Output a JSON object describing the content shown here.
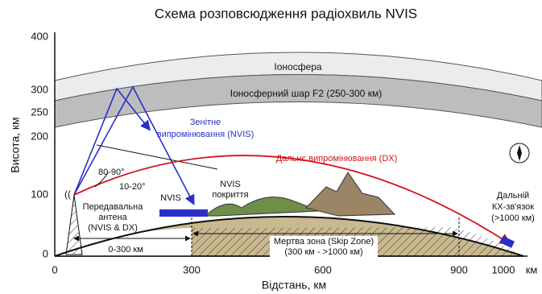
{
  "title": "Схема розповсюдження радіохвиль NVIS",
  "y_axis": {
    "label": "Висота, км",
    "ticks": [
      "0",
      "100",
      "200",
      "250",
      "300",
      "400"
    ]
  },
  "x_axis": {
    "label": "Відстань, км",
    "ticks": [
      "0",
      "300",
      "600",
      "900",
      "1000",
      "км"
    ]
  },
  "layers": {
    "ionosphere": "Іоносфера",
    "f2": "Іоносферний шар F2  (250-300 км)"
  },
  "labels": {
    "nvis_radiation": [
      "Зенітне",
      "випромінювання (NVIS)"
    ],
    "dx_radiation": "Дальнє випромінювання (DX)",
    "angle_high": "80-90°",
    "angle_low": "10-20°",
    "antenna": [
      "Передавальна",
      "антена",
      "(NVIS & DX)"
    ],
    "nvis": "NVIS",
    "nvis_coverage": [
      "NVIS",
      "покриття"
    ],
    "long_range": [
      "Дальній",
      "КХ-зв'язок",
      "(>1000 км)"
    ],
    "range_0_300": "0-300 км",
    "skip_zone": [
      "Мертва зона (Skip Zone)",
      "(300 км - >1000 км)"
    ]
  }
}
